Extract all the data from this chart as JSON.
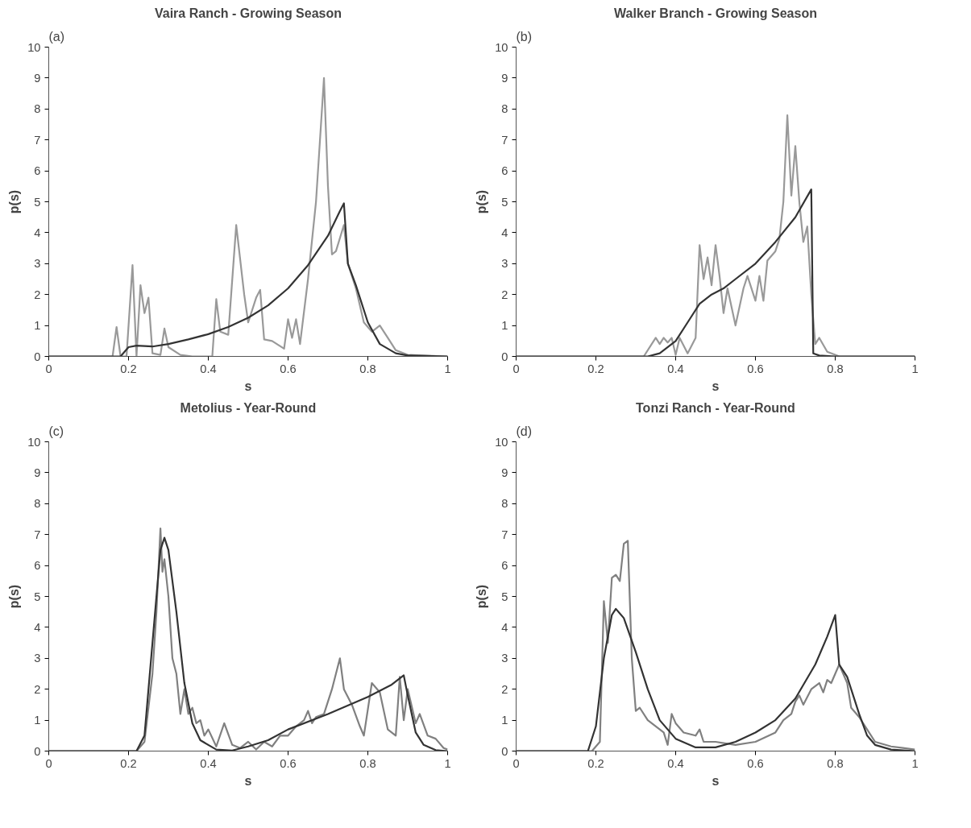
{
  "chart_data": [
    {
      "type": "line",
      "title": "Vaira Ranch - Growing Season",
      "xlabel": "s",
      "ylabel": "p(s)",
      "annotations": [
        "(a)"
      ],
      "xlim": [
        0,
        1
      ],
      "ylim": [
        0,
        10
      ],
      "xticks": [
        0,
        0.2,
        0.4,
        0.6,
        0.8,
        1
      ],
      "yticks": [
        0,
        1,
        2,
        3,
        4,
        5,
        6,
        7,
        8,
        9,
        10
      ],
      "grid": false,
      "series": [
        {
          "color": "#999999",
          "x": [
            0,
            0.16,
            0.17,
            0.18,
            0.195,
            0.21,
            0.22,
            0.23,
            0.24,
            0.25,
            0.26,
            0.28,
            0.29,
            0.3,
            0.33,
            0.36,
            0.41,
            0.42,
            0.43,
            0.45,
            0.47,
            0.49,
            0.5,
            0.52,
            0.53,
            0.54,
            0.56,
            0.59,
            0.6,
            0.61,
            0.62,
            0.63,
            0.65,
            0.67,
            0.68,
            0.69,
            0.7,
            0.71,
            0.72,
            0.74,
            0.75,
            0.77,
            0.79,
            0.81,
            0.83,
            0.85,
            0.87,
            0.9,
            1
          ],
          "values": [
            0,
            0,
            0.95,
            0,
            0,
            2.95,
            0,
            2.3,
            1.4,
            1.9,
            0.1,
            0.05,
            0.9,
            0.3,
            0.05,
            0,
            0,
            1.85,
            0.8,
            0.7,
            4.25,
            2,
            1.1,
            1.9,
            2.15,
            0.55,
            0.5,
            0.25,
            1.2,
            0.6,
            1.2,
            0.4,
            2.5,
            5,
            7,
            9,
            5.5,
            3.3,
            3.4,
            4.25,
            3,
            2.2,
            1.1,
            0.8,
            1,
            0.6,
            0.2,
            0.05,
            0
          ]
        },
        {
          "color": "#333333",
          "x": [
            0,
            0.18,
            0.2,
            0.22,
            0.26,
            0.3,
            0.35,
            0.4,
            0.45,
            0.5,
            0.55,
            0.6,
            0.65,
            0.7,
            0.73,
            0.74,
            0.75,
            0.77,
            0.8,
            0.83,
            0.87,
            0.9,
            1
          ],
          "values": [
            0,
            0,
            0.3,
            0.35,
            0.32,
            0.4,
            0.55,
            0.72,
            0.95,
            1.25,
            1.65,
            2.2,
            2.95,
            3.9,
            4.7,
            4.95,
            3,
            2.3,
            1.1,
            0.4,
            0.1,
            0.03,
            0
          ]
        }
      ]
    },
    {
      "type": "line",
      "title": "Walker Branch - Growing Season",
      "xlabel": "s",
      "ylabel": "p(s)",
      "annotations": [
        "(b)"
      ],
      "xlim": [
        0,
        1
      ],
      "ylim": [
        0,
        10
      ],
      "xticks": [
        0,
        0.2,
        0.4,
        0.6,
        0.8,
        1
      ],
      "yticks": [
        0,
        1,
        2,
        3,
        4,
        5,
        6,
        7,
        8,
        9,
        10
      ],
      "grid": false,
      "series": [
        {
          "color": "#999999",
          "x": [
            0,
            0.32,
            0.35,
            0.36,
            0.37,
            0.38,
            0.39,
            0.4,
            0.41,
            0.43,
            0.45,
            0.46,
            0.47,
            0.48,
            0.49,
            0.5,
            0.51,
            0.52,
            0.53,
            0.55,
            0.57,
            0.58,
            0.6,
            0.61,
            0.62,
            0.63,
            0.65,
            0.66,
            0.67,
            0.68,
            0.69,
            0.7,
            0.71,
            0.72,
            0.73,
            0.74,
            0.75,
            0.76,
            0.78,
            0.8,
            0.81,
            1
          ],
          "values": [
            0,
            0,
            0.6,
            0.4,
            0.6,
            0.45,
            0.6,
            0.05,
            0.6,
            0.1,
            0.6,
            3.6,
            2.5,
            3.2,
            2.3,
            3.6,
            2.6,
            1.4,
            2.2,
            1,
            2.2,
            2.6,
            1.8,
            2.6,
            1.8,
            3.1,
            3.4,
            3.8,
            5,
            7.8,
            5.2,
            6.8,
            5,
            3.7,
            4.2,
            2,
            0.4,
            0.6,
            0.15,
            0.05,
            0,
            0
          ]
        },
        {
          "color": "#333333",
          "x": [
            0,
            0.33,
            0.36,
            0.4,
            0.43,
            0.46,
            0.49,
            0.52,
            0.55,
            0.6,
            0.65,
            0.7,
            0.74,
            0.745,
            0.76,
            0.8,
            1
          ],
          "values": [
            0,
            0,
            0.1,
            0.5,
            1.1,
            1.7,
            2,
            2.2,
            2.5,
            3,
            3.7,
            4.5,
            5.4,
            0.1,
            0.03,
            0,
            0
          ]
        }
      ]
    },
    {
      "type": "line",
      "title": "Metolius - Year-Round",
      "xlabel": "s",
      "ylabel": "p(s)",
      "annotations": [
        "(c)"
      ],
      "xlim": [
        0,
        1
      ],
      "ylim": [
        0,
        10
      ],
      "xticks": [
        0,
        0.2,
        0.4,
        0.6,
        0.8,
        1
      ],
      "yticks": [
        0,
        1,
        2,
        3,
        4,
        5,
        6,
        7,
        8,
        9,
        10
      ],
      "grid": false,
      "series": [
        {
          "color": "#808080",
          "x": [
            0,
            0.22,
            0.24,
            0.26,
            0.27,
            0.28,
            0.285,
            0.29,
            0.3,
            0.31,
            0.32,
            0.33,
            0.34,
            0.35,
            0.36,
            0.37,
            0.38,
            0.39,
            0.4,
            0.42,
            0.44,
            0.46,
            0.48,
            0.5,
            0.52,
            0.54,
            0.56,
            0.58,
            0.6,
            0.62,
            0.64,
            0.65,
            0.66,
            0.67,
            0.69,
            0.71,
            0.73,
            0.74,
            0.76,
            0.78,
            0.79,
            0.81,
            0.83,
            0.85,
            0.87,
            0.88,
            0.89,
            0.9,
            0.92,
            0.93,
            0.95,
            0.97,
            0.99,
            1
          ],
          "values": [
            0,
            0,
            0.3,
            2.5,
            4.5,
            7.2,
            5.8,
            6.2,
            5,
            3,
            2.5,
            1.2,
            2,
            1.2,
            1.4,
            0.9,
            1,
            0.5,
            0.7,
            0.15,
            0.9,
            0.2,
            0.1,
            0.3,
            0.05,
            0.3,
            0.15,
            0.5,
            0.5,
            0.8,
            1,
            1.3,
            0.9,
            1.1,
            1.2,
            2,
            3,
            2,
            1.5,
            0.8,
            0.5,
            2.2,
            1.9,
            0.7,
            0.5,
            2.4,
            1,
            2,
            0.9,
            1.2,
            0.5,
            0.4,
            0.1,
            0.05
          ]
        },
        {
          "color": "#333333",
          "x": [
            0,
            0.22,
            0.24,
            0.26,
            0.28,
            0.29,
            0.3,
            0.32,
            0.34,
            0.36,
            0.38,
            0.42,
            0.46,
            0.5,
            0.55,
            0.6,
            0.7,
            0.8,
            0.86,
            0.89,
            0.9,
            0.92,
            0.94,
            0.97,
            1
          ],
          "values": [
            0,
            0,
            0.5,
            3.5,
            6.5,
            6.9,
            6.5,
            4.5,
            2.2,
            0.9,
            0.35,
            0.05,
            0.02,
            0.15,
            0.35,
            0.7,
            1.2,
            1.75,
            2.15,
            2.45,
            1.8,
            0.6,
            0.2,
            0.03,
            0
          ]
        }
      ]
    },
    {
      "type": "line",
      "title": "Tonzi Ranch - Year-Round",
      "xlabel": "s",
      "ylabel": "p(s)",
      "annotations": [
        "(d)"
      ],
      "xlim": [
        0,
        1
      ],
      "ylim": [
        0,
        10
      ],
      "xticks": [
        0,
        0.2,
        0.4,
        0.6,
        0.8,
        1
      ],
      "yticks": [
        0,
        1,
        2,
        3,
        4,
        5,
        6,
        7,
        8,
        9,
        10
      ],
      "grid": false,
      "series": [
        {
          "color": "#808080",
          "x": [
            0,
            0.19,
            0.21,
            0.22,
            0.23,
            0.24,
            0.25,
            0.26,
            0.27,
            0.28,
            0.29,
            0.3,
            0.31,
            0.33,
            0.37,
            0.38,
            0.39,
            0.4,
            0.42,
            0.45,
            0.46,
            0.47,
            0.5,
            0.55,
            0.6,
            0.65,
            0.67,
            0.69,
            0.7,
            0.71,
            0.72,
            0.74,
            0.76,
            0.77,
            0.78,
            0.79,
            0.81,
            0.83,
            0.84,
            0.86,
            0.88,
            0.9,
            0.94,
            0.97,
            1
          ],
          "values": [
            0,
            0,
            0.3,
            4.85,
            3.5,
            5.6,
            5.7,
            5.5,
            6.7,
            6.8,
            3,
            1.3,
            1.4,
            1,
            0.6,
            0.2,
            1.2,
            0.9,
            0.6,
            0.5,
            0.7,
            0.3,
            0.3,
            0.2,
            0.3,
            0.6,
            1,
            1.2,
            1.6,
            1.8,
            1.5,
            2,
            2.2,
            1.9,
            2.3,
            2.2,
            2.8,
            2.2,
            1.4,
            1.1,
            0.7,
            0.3,
            0.15,
            0.1,
            0.05
          ]
        },
        {
          "color": "#333333",
          "x": [
            0,
            0.18,
            0.2,
            0.22,
            0.24,
            0.25,
            0.27,
            0.3,
            0.33,
            0.36,
            0.4,
            0.45,
            0.5,
            0.55,
            0.6,
            0.65,
            0.7,
            0.75,
            0.78,
            0.8,
            0.81,
            0.83,
            0.86,
            0.88,
            0.9,
            0.94,
            1
          ],
          "values": [
            0,
            0,
            0.8,
            3,
            4.4,
            4.6,
            4.3,
            3.2,
            2,
            1,
            0.4,
            0.12,
            0.12,
            0.3,
            0.6,
            1,
            1.7,
            2.8,
            3.7,
            4.4,
            2.8,
            2.4,
            1.2,
            0.5,
            0.2,
            0.05,
            0
          ]
        }
      ]
    }
  ]
}
